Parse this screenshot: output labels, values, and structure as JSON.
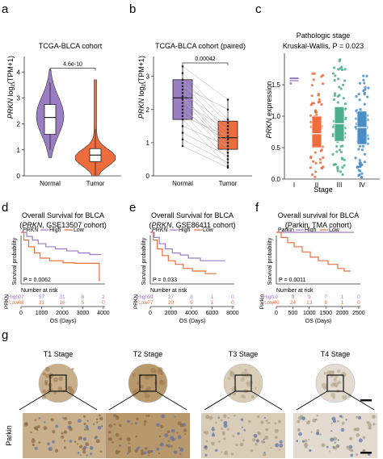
{
  "colors": {
    "normal": "#9b7dc4",
    "tumor": "#ef6c3c",
    "stage_I": "#9b7dc4",
    "stage_II": "#ef6c3c",
    "stage_III": "#4fae8c",
    "stage_IV": "#4a8ec6",
    "high": "#9b7dc4",
    "low": "#ef6c3c",
    "ihc_bg": "#d8c7a8"
  },
  "panels": {
    "a": {
      "letter": "a"
    },
    "b": {
      "letter": "b"
    },
    "c": {
      "letter": "c"
    },
    "d": {
      "letter": "d"
    },
    "e": {
      "letter": "e"
    },
    "f": {
      "letter": "f"
    },
    "g": {
      "letter": "g"
    }
  },
  "chart_data": [
    {
      "id": "a",
      "type": "violin",
      "title": "TCGA-BLCA cohort",
      "ylabel_gene": "PRKN",
      "ylabel_rest": " log",
      "ylabel_sub": "2",
      "ylabel_tail": "(TPM+1)",
      "categories": [
        "Normal",
        "Tumor"
      ],
      "yticks": [
        "0",
        "1",
        "2",
        "3",
        "4"
      ],
      "ylim": [
        0,
        4.6
      ],
      "boxes": [
        {
          "name": "Normal",
          "q1": 1.6,
          "median": 2.25,
          "q3": 2.75,
          "whisker_low": 1.0,
          "whisker_high": 3.6,
          "violin_min": 0.7,
          "violin_max": 4.1
        },
        {
          "name": "Tumor",
          "q1": 0.55,
          "median": 0.8,
          "q3": 1.05,
          "whisker_low": 0.0,
          "whisker_high": 1.8,
          "violin_min": 0.0,
          "violin_max": 3.7
        }
      ],
      "pvalue": "4.6e-10"
    },
    {
      "id": "b",
      "type": "paired_box",
      "title": "TCGA-BLCA cohort (paired)",
      "ylabel_gene": "PRKN",
      "ylabel_rest": " log",
      "ylabel_sub": "2",
      "ylabel_tail": "(TPM+1)",
      "categories": [
        "Normal",
        "Tumor"
      ],
      "yticks": [
        "0",
        "1",
        "2",
        "3"
      ],
      "ylim": [
        0,
        3.6
      ],
      "boxes": [
        {
          "name": "Normal",
          "q1": 1.7,
          "median": 2.35,
          "q3": 2.9,
          "whisker_low": 0.9,
          "whisker_high": 3.3
        },
        {
          "name": "Tumor",
          "q1": 0.8,
          "median": 1.15,
          "q3": 1.65,
          "whisker_low": 0.25,
          "whisker_high": 2.3
        }
      ],
      "pairs": [
        [
          3.3,
          2.3
        ],
        [
          3.1,
          1.7
        ],
        [
          2.9,
          1.6
        ],
        [
          2.8,
          1.3
        ],
        [
          2.7,
          2.0
        ],
        [
          2.6,
          1.2
        ],
        [
          2.5,
          1.5
        ],
        [
          2.4,
          0.9
        ],
        [
          2.35,
          1.1
        ],
        [
          2.3,
          0.8
        ],
        [
          2.2,
          1.4
        ],
        [
          2.1,
          0.7
        ],
        [
          2.0,
          1.0
        ],
        [
          1.9,
          0.5
        ],
        [
          1.8,
          1.2
        ],
        [
          1.7,
          0.3
        ],
        [
          1.5,
          0.9
        ],
        [
          1.3,
          0.6
        ],
        [
          1.1,
          0.4
        ],
        [
          0.9,
          0.25
        ]
      ],
      "pvalue": "0.00042"
    },
    {
      "id": "c",
      "type": "strip_box",
      "title": "Pathologic stage",
      "subtitle": "Kruskal-Wallis, P = 0.023",
      "ylabel": "PRKN expression",
      "xlabel": "Stage",
      "categories": [
        "I",
        "II",
        "III",
        "IV"
      ],
      "yticks": [
        "0.0",
        "0.5",
        "1.0",
        "1.5"
      ],
      "ylim": [
        0,
        2.0
      ],
      "groups": [
        {
          "name": "I",
          "median": 1.58,
          "q1": 1.55,
          "q3": 1.62,
          "n_points": 2,
          "min": 1.5,
          "max": 1.66
        },
        {
          "name": "II",
          "median": 0.72,
          "q1": 0.5,
          "q3": 1.0,
          "n_points": 60,
          "min": 0.02,
          "max": 1.75
        },
        {
          "name": "III",
          "median": 0.88,
          "q1": 0.6,
          "q3": 1.15,
          "n_points": 70,
          "min": 0.05,
          "max": 1.95
        },
        {
          "name": "IV",
          "median": 0.82,
          "q1": 0.55,
          "q3": 1.08,
          "n_points": 75,
          "min": 0.03,
          "max": 1.7
        }
      ]
    },
    {
      "id": "d",
      "type": "km",
      "title": "Overall Survival for BLCA",
      "subtitle_pre": "(",
      "subtitle_gene": "PRKN",
      "subtitle_post": ", GSE13507 cohort)",
      "legend_label_gene": "PRKN",
      "legend_high": "High",
      "legend_low": "Low",
      "ylabel": "Survival probability",
      "xlabel": "OS (Days)",
      "xlim": [
        0,
        4400
      ],
      "xticks": [
        "0",
        "1000",
        "2000",
        "3000",
        "4000"
      ],
      "pvalue": "P = 0.0062",
      "risk_title": "Number at risk",
      "risk_gene": "PRKN",
      "risk_labels": [
        "High",
        "Low"
      ],
      "risk_high": [
        "97",
        "57",
        "31",
        "8",
        "2"
      ],
      "risk_low": [
        "68",
        "31",
        "16",
        "5",
        "0"
      ],
      "series": [
        {
          "name": "High",
          "steps": [
            [
              0,
              1.0
            ],
            [
              300,
              0.92
            ],
            [
              600,
              0.85
            ],
            [
              900,
              0.78
            ],
            [
              1300,
              0.72
            ],
            [
              1800,
              0.68
            ],
            [
              2400,
              0.64
            ],
            [
              3000,
              0.6
            ],
            [
              3600,
              0.57
            ],
            [
              4200,
              0.57
            ]
          ]
        },
        {
          "name": "Low",
          "steps": [
            [
              0,
              1.0
            ],
            [
              150,
              0.85
            ],
            [
              400,
              0.72
            ],
            [
              700,
              0.6
            ],
            [
              1000,
              0.5
            ],
            [
              1500,
              0.45
            ],
            [
              2200,
              0.41
            ],
            [
              2800,
              0.4
            ],
            [
              3400,
              0.4
            ],
            [
              3900,
              0.4
            ],
            [
              4100,
              0.05
            ]
          ]
        }
      ]
    },
    {
      "id": "e",
      "type": "km",
      "title": "Overall Survival for BLCA",
      "subtitle_pre": "(",
      "subtitle_gene": "PRKN",
      "subtitle_post": ", GSE86411 cohort)",
      "legend_label_gene": "PRKN",
      "legend_high": "High",
      "legend_low": "Low",
      "ylabel": "Survival probability",
      "xlabel": "OS (Days)",
      "xlim": [
        0,
        8400
      ],
      "xticks": [
        "0",
        "2000",
        "4000",
        "6000",
        "8000"
      ],
      "pvalue": "P = 0.033",
      "risk_title": "Number at risk",
      "risk_gene": "PRKN",
      "risk_labels": [
        "High",
        "Low"
      ],
      "risk_high": [
        "59",
        "27",
        "8",
        "1",
        "0"
      ],
      "risk_low": [
        "77",
        "20",
        "5",
        "1",
        "0"
      ],
      "series": [
        {
          "name": "High",
          "steps": [
            [
              0,
              1.0
            ],
            [
              400,
              0.9
            ],
            [
              900,
              0.78
            ],
            [
              1500,
              0.68
            ],
            [
              2200,
              0.6
            ],
            [
              3000,
              0.56
            ],
            [
              3800,
              0.5
            ],
            [
              5000,
              0.45
            ],
            [
              6500,
              0.45
            ],
            [
              7500,
              0.45
            ]
          ]
        },
        {
          "name": "Low",
          "steps": [
            [
              0,
              1.0
            ],
            [
              300,
              0.85
            ],
            [
              700,
              0.68
            ],
            [
              1200,
              0.55
            ],
            [
              1800,
              0.45
            ],
            [
              2500,
              0.38
            ],
            [
              3300,
              0.3
            ],
            [
              4200,
              0.25
            ],
            [
              5500,
              0.2
            ],
            [
              6600,
              0.2
            ]
          ]
        }
      ]
    },
    {
      "id": "f",
      "type": "km",
      "title": "Overall survival for BLCA",
      "subtitle_pre": "(",
      "subtitle_gene": "",
      "subtitle_post": "Parkin, TMA cohort)",
      "legend_label_gene": "",
      "legend_label_plain": "Parkin",
      "legend_high": "High",
      "legend_low": "Low",
      "ylabel": "Survival probability",
      "xlabel": "OS (Days)",
      "xlim": [
        0,
        2600
      ],
      "xticks": [
        "0",
        "500",
        "1000",
        "1500",
        "2000",
        "2500"
      ],
      "pvalue": "P = 0.0011",
      "risk_title": "Number at risk",
      "risk_gene": "Parkin",
      "risk_labels": [
        "High",
        "Low"
      ],
      "risk_high": [
        "9",
        "9",
        "9",
        "7",
        "1",
        "0"
      ],
      "risk_low": [
        "40",
        "24",
        "13",
        "8",
        "1",
        "0"
      ],
      "series": [
        {
          "name": "High",
          "steps": [
            [
              0,
              1.0
            ],
            [
              2400,
              1.0
            ]
          ]
        },
        {
          "name": "Low",
          "steps": [
            [
              0,
              1.0
            ],
            [
              150,
              0.9
            ],
            [
              350,
              0.8
            ],
            [
              550,
              0.72
            ],
            [
              800,
              0.62
            ],
            [
              1050,
              0.52
            ],
            [
              1300,
              0.45
            ],
            [
              1600,
              0.38
            ],
            [
              1900,
              0.3
            ],
            [
              2100,
              0.25
            ],
            [
              2300,
              0.25
            ]
          ]
        }
      ]
    }
  ],
  "ihc": {
    "stages": [
      "T1 Stage",
      "T2 Stage",
      "T3 Stage",
      "T4 Stage"
    ],
    "row_label": "Parkin"
  }
}
